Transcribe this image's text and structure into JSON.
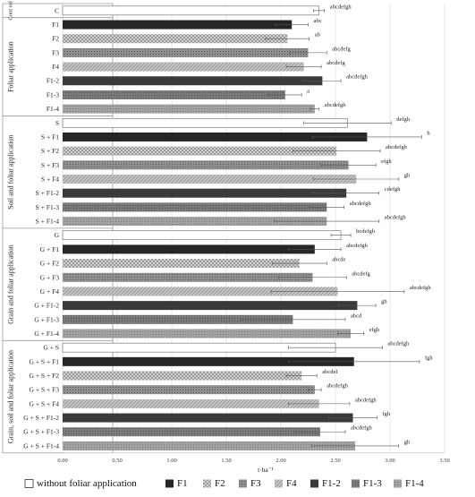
{
  "chart_data": {
    "type": "bar",
    "orientation": "horizontal",
    "xlabel": "t·ha⁻¹",
    "xlim": [
      0,
      3.5
    ],
    "xticks": [
      "0.00",
      "0.50",
      "1.00",
      "1.50",
      "2.00",
      "2.50",
      "3.00",
      "3.50"
    ],
    "grid": true,
    "legend_position": "bottom",
    "legend": [
      {
        "label": "without foliar application",
        "pattern": "plain",
        "color": "#ffffff"
      },
      {
        "label": "F1",
        "pattern": "solid-dark",
        "color": "#262626"
      },
      {
        "label": "F2",
        "pattern": "crosshatch",
        "color": "#d0d0d0"
      },
      {
        "label": "F3",
        "pattern": "dotted",
        "color": "#8c8c8c"
      },
      {
        "label": "F4",
        "pattern": "diagonal",
        "color": "#bcbcbc"
      },
      {
        "label": "F1-2",
        "pattern": "solid-dark",
        "color": "#3a3a3a"
      },
      {
        "label": "F1-3",
        "pattern": "dotted",
        "color": "#777777"
      },
      {
        "label": "F1-4",
        "pattern": "dotted-light",
        "color": "#9a9a9a"
      }
    ],
    "groups": [
      {
        "label": "Cont rol",
        "start": 0,
        "count": 1
      },
      {
        "label": "Foliar application",
        "start": 1,
        "count": 7
      },
      {
        "label": "Soil and foliar application",
        "start": 8,
        "count": 8
      },
      {
        "label": "Grain and foliar application",
        "start": 16,
        "count": 8
      },
      {
        "label": "Grain, soil and foliar application",
        "start": 24,
        "count": 8
      }
    ],
    "rows": [
      {
        "category": "C",
        "value": 2.35,
        "error": 0.05,
        "letters": "abcdefgh",
        "style": 0
      },
      {
        "category": "F1",
        "value": 2.1,
        "error": 0.15,
        "letters": "abc",
        "style": 1
      },
      {
        "category": "F2",
        "value": 2.06,
        "error": 0.2,
        "letters": "ab",
        "style": 2
      },
      {
        "category": "F3",
        "value": 2.25,
        "error": 0.17,
        "letters": "abcdefg",
        "style": 3
      },
      {
        "category": "F4",
        "value": 2.21,
        "error": 0.16,
        "letters": "abcdefg",
        "style": 4
      },
      {
        "category": "F1-2",
        "value": 2.38,
        "error": 0.17,
        "letters": "abcdefgh",
        "style": 5
      },
      {
        "category": "F1-3",
        "value": 2.04,
        "error": 0.15,
        "letters": "a",
        "style": 6
      },
      {
        "category": "F1-4",
        "value": 2.31,
        "error": 0.04,
        "letters": "abcdefgh",
        "style": 7
      },
      {
        "category": "S",
        "value": 2.61,
        "error": 0.4,
        "letters": "defgh",
        "style": 0
      },
      {
        "category": "S + F1",
        "value": 2.79,
        "error": 0.5,
        "letters": "h",
        "style": 1
      },
      {
        "category": "S + F2",
        "value": 2.51,
        "error": 0.4,
        "letters": "abcdefgh",
        "style": 2
      },
      {
        "category": "S + F3",
        "value": 2.62,
        "error": 0.25,
        "letters": "efgh",
        "style": 3
      },
      {
        "category": "S + F4",
        "value": 2.69,
        "error": 0.39,
        "letters": "gh",
        "style": 4
      },
      {
        "category": "S + F1-2",
        "value": 2.6,
        "error": 0.3,
        "letters": "cdefgh",
        "style": 5
      },
      {
        "category": "S + F1-3",
        "value": 2.42,
        "error": 0.16,
        "letters": "abcdefgh",
        "style": 6
      },
      {
        "category": "S + F1-4",
        "value": 2.42,
        "error": 0.48,
        "letters": "abcdefgh",
        "style": 7
      },
      {
        "category": "G",
        "value": 2.55,
        "error": 0.09,
        "letters": "bcdefgh",
        "style": 0
      },
      {
        "category": "G + F1",
        "value": 2.31,
        "error": 0.24,
        "letters": "abcdefgh",
        "style": 1
      },
      {
        "category": "G + F2",
        "value": 2.17,
        "error": 0.25,
        "letters": "abcde",
        "style": 2
      },
      {
        "category": "G + F3",
        "value": 2.29,
        "error": 0.31,
        "letters": "abcdefg",
        "style": 3
      },
      {
        "category": "G + F4",
        "value": 2.52,
        "error": 0.61,
        "letters": "abcdefgh",
        "style": 4
      },
      {
        "category": "G + F1-2",
        "value": 2.7,
        "error": 0.17,
        "letters": "gh",
        "style": 5
      },
      {
        "category": "G + F1-3",
        "value": 2.11,
        "error": 0.48,
        "letters": "abcd",
        "style": 6
      },
      {
        "category": "G + F1-4",
        "value": 2.64,
        "error": 0.12,
        "letters": "efgh",
        "style": 7
      },
      {
        "category": "G + S",
        "value": 2.5,
        "error": 0.43,
        "letters": "abcdefgh",
        "style": 0
      },
      {
        "category": "G + S + F1",
        "value": 2.67,
        "error": 0.6,
        "letters": "fgh",
        "style": 1
      },
      {
        "category": "G + S + F2",
        "value": 2.19,
        "error": 0.14,
        "letters": "abcdef",
        "style": 2
      },
      {
        "category": "G + S + F3",
        "value": 2.31,
        "error": 0.06,
        "letters": "abcdefgh",
        "style": 3
      },
      {
        "category": "G + S + F4",
        "value": 2.35,
        "error": 0.28,
        "letters": "abcdefgh",
        "style": 4
      },
      {
        "category": "G + S + F1-2",
        "value": 2.66,
        "error": 0.22,
        "letters": "fgh",
        "style": 5
      },
      {
        "category": "G + S + F1-3",
        "value": 2.36,
        "error": 0.23,
        "letters": "abcdefgh",
        "style": 6
      },
      {
        "category": "G + S + F1-4",
        "value": 2.68,
        "error": 0.4,
        "letters": "gh",
        "style": 7
      }
    ]
  }
}
